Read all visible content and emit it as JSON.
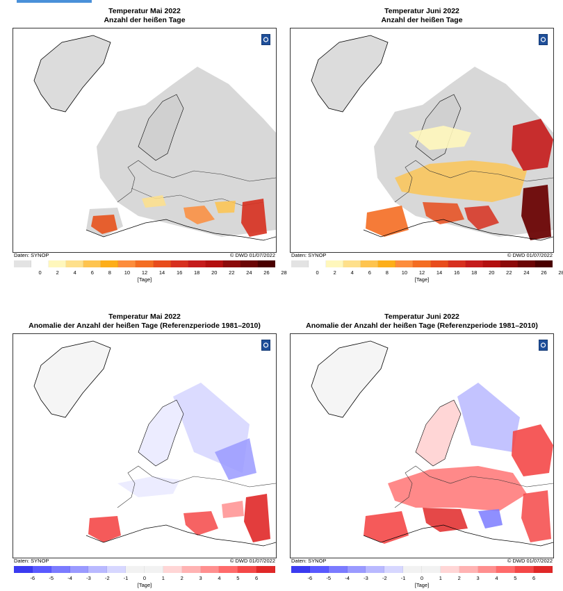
{
  "panels": [
    {
      "title_line1": "Temperatur Mai 2022",
      "title_line2": "Anzahl der heißen Tage",
      "source": "Daten: SYNOP",
      "copyright": "© DWD 01/07/2022",
      "unit": "[Tage]",
      "ticks": [
        "0",
        "2",
        "4",
        "6",
        "8",
        "10",
        "12",
        "14",
        "16",
        "18",
        "20",
        "22",
        "24",
        "26",
        "28"
      ],
      "legend_colors": [
        "#e3e3e3",
        "#ffffff",
        "#fff7bc",
        "#fee08b",
        "#fec44f",
        "#fdae1a",
        "#fd8d3c",
        "#f46d22",
        "#e84c1c",
        "#d7301f",
        "#c51b1b",
        "#b30f0f",
        "#8c0a0a",
        "#6b0505",
        "#4a0000"
      ]
    },
    {
      "title_line1": "Temperatur Juni 2022",
      "title_line2": "Anzahl der heißen Tage",
      "source": "Daten: SYNOP",
      "copyright": "© DWD 01/07/2022",
      "unit": "[Tage]",
      "ticks": [
        "0",
        "2",
        "4",
        "6",
        "8",
        "10",
        "12",
        "14",
        "16",
        "18",
        "20",
        "22",
        "24",
        "26",
        "28"
      ],
      "legend_colors": [
        "#e3e3e3",
        "#ffffff",
        "#fff7bc",
        "#fee08b",
        "#fec44f",
        "#fdae1a",
        "#fd8d3c",
        "#f46d22",
        "#e84c1c",
        "#d7301f",
        "#c51b1b",
        "#b30f0f",
        "#8c0a0a",
        "#6b0505",
        "#4a0000"
      ]
    },
    {
      "title_line1": "Temperatur Mai 2022",
      "title_line2": "Anomalie der Anzahl der heißen Tage (Referenzperiode 1981–2010)",
      "source": "Daten: SYNOP",
      "copyright": "© DWD 01/07/2022",
      "unit": "[Tage]",
      "ticks": [
        "-6",
        "-5",
        "-4",
        "-3",
        "-2",
        "-1",
        "0",
        "1",
        "2",
        "3",
        "4",
        "5",
        "6"
      ],
      "legend_colors": [
        "#3b3bf0",
        "#5a5aff",
        "#7b7bff",
        "#9a9aff",
        "#b9b9ff",
        "#d7d7ff",
        "#f2f2f2",
        "#f2f2f2",
        "#ffd6d6",
        "#ffb3b3",
        "#ff8f8f",
        "#ff6b6b",
        "#f44848",
        "#e02828"
      ]
    },
    {
      "title_line1": "Temperatur Juni 2022",
      "title_line2": "Anomalie der Anzahl der heißen Tage (Referenzperiode 1981–2010)",
      "source": "Daten: SYNOP",
      "copyright": "© DWD 01/07/2022",
      "unit": "[Tage]",
      "ticks": [
        "-6",
        "-5",
        "-4",
        "-3",
        "-2",
        "-1",
        "0",
        "1",
        "2",
        "3",
        "4",
        "5",
        "6"
      ],
      "legend_colors": [
        "#3b3bf0",
        "#5a5aff",
        "#7b7bff",
        "#9a9aff",
        "#b9b9ff",
        "#d7d7ff",
        "#f2f2f2",
        "#f2f2f2",
        "#ffd6d6",
        "#ffb3b3",
        "#ff8f8f",
        "#ff6b6b",
        "#f44848",
        "#e02828"
      ]
    }
  ]
}
